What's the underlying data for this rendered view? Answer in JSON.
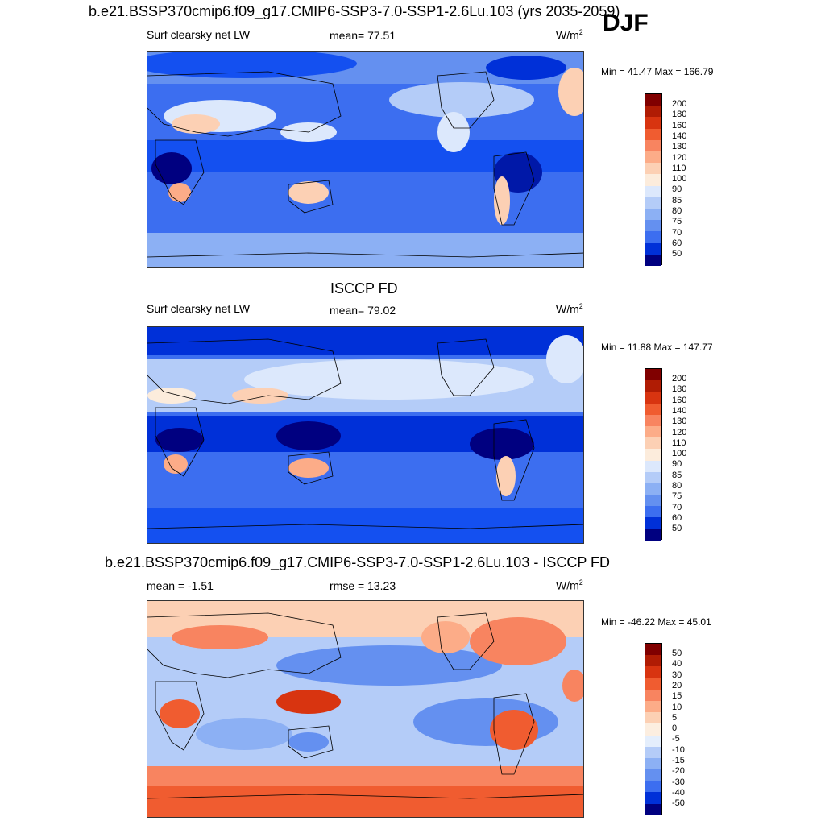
{
  "main_title": "b.e21.BSSP370cmip6.f09_g17.CMIP6-SSP3-7.0-SSP1-2.6Lu.103 (yrs 2035-2059)",
  "season": "DJF",
  "panels": [
    {
      "title": "",
      "left_label": "Surf clearsky net LW",
      "center_label": "mean=  77.51",
      "units_base": "W/m",
      "units_exp": "2",
      "minmax": "Min =  41.47 Max = 166.79",
      "legend_labels": [
        "200",
        "180",
        "160",
        "140",
        "130",
        "120",
        "110",
        "100",
        "90",
        "85",
        "80",
        "75",
        "70",
        "60",
        "50"
      ]
    },
    {
      "title": "ISCCP FD",
      "left_label": "Surf clearsky net LW",
      "center_label": "mean=  79.02",
      "units_base": "W/m",
      "units_exp": "2",
      "minmax": "Min =  11.88 Max = 147.77",
      "legend_labels": [
        "200",
        "180",
        "160",
        "140",
        "130",
        "120",
        "110",
        "100",
        "90",
        "85",
        "80",
        "75",
        "70",
        "60",
        "50"
      ]
    },
    {
      "title": "b.e21.BSSP370cmip6.f09_g17.CMIP6-SSP3-7.0-SSP1-2.6Lu.103 - ISCCP FD",
      "left_label": "mean =  -1.51",
      "center_label": "rmse =  13.23",
      "units_base": "W/m",
      "units_exp": "2",
      "minmax": "Min = -46.22 Max =  45.01",
      "legend_labels": [
        "50",
        "40",
        "30",
        "20",
        "15",
        "10",
        "5",
        "0",
        "-5",
        "-10",
        "-15",
        "-20",
        "-30",
        "-40",
        "-50"
      ]
    }
  ],
  "colors": {
    "field_scale": [
      "#000080",
      "#0018a8",
      "#0030d8",
      "#1450f0",
      "#3c6ef0",
      "#6490f0",
      "#8cb0f4",
      "#b4ccf8",
      "#dce8fc",
      "#fcecdc",
      "#fcd0b4",
      "#fcac88",
      "#f88460",
      "#f05c30",
      "#d83410",
      "#b01c04",
      "#800000"
    ],
    "diff_scale": [
      "#000080",
      "#0018a8",
      "#0030d8",
      "#1450f0",
      "#3c6ef0",
      "#6490f0",
      "#8cb0f4",
      "#b4ccf8",
      "#e4eefc",
      "#fceee0",
      "#fcd0b4",
      "#fcac88",
      "#f88460",
      "#f05c30",
      "#d83410",
      "#b01c04",
      "#800000"
    ]
  }
}
